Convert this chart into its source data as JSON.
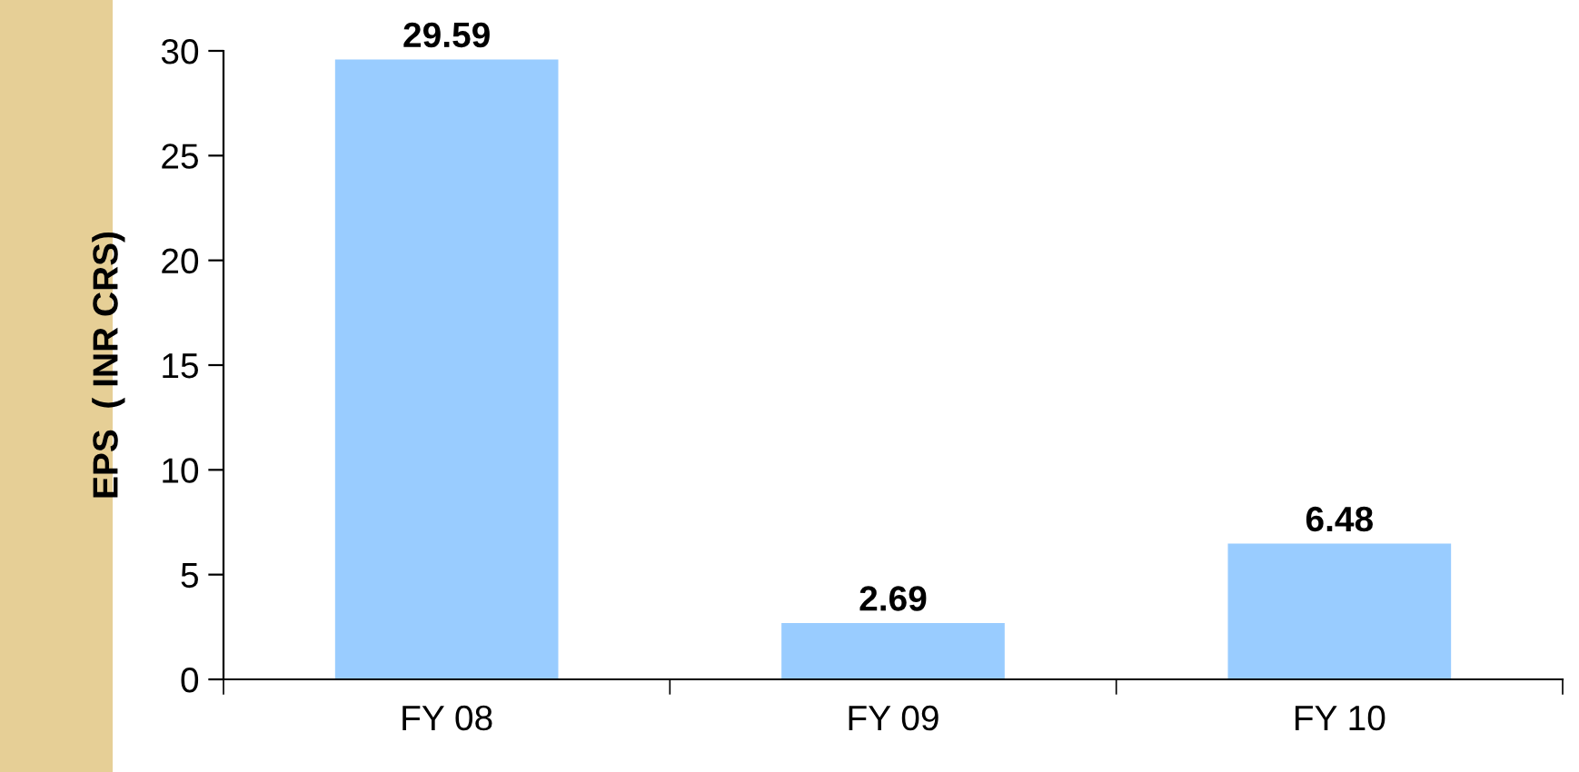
{
  "chart_data": {
    "type": "bar",
    "ylabel": "EPS  ( INR CRS)",
    "categories": [
      "FY 08",
      "FY 09",
      "FY 10"
    ],
    "values": [
      29.59,
      2.69,
      6.48
    ],
    "color": "#99ccff",
    "ylim": [
      0,
      30
    ],
    "yticks": [
      0,
      5,
      10,
      15,
      20,
      25,
      30
    ],
    "data_labels": true,
    "grid": false,
    "legend": false
  }
}
